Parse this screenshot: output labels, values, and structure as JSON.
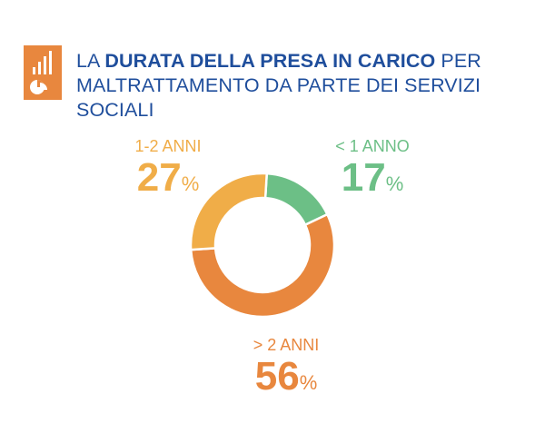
{
  "title": {
    "prefix": "LA ",
    "bold": "DURATA DELLA PRESA IN CARICO",
    "suffix": " PER",
    "line2": "MALTRATTAMENTO DA PARTE DEI SERVIZI SOCIALI"
  },
  "logo_icon": "bar-and-pie-chart-icon",
  "colors": {
    "title": "#1f4e9c",
    "logo": "#e8873e",
    "donut_orange": "#e8873e",
    "donut_yellow": "#f0ad48",
    "donut_green": "#6cbf86"
  },
  "chart_data": {
    "type": "pie",
    "variant": "donut",
    "categories": [
      "< 1 ANNO",
      "> 2 ANNI",
      "1-2 ANNI"
    ],
    "values": [
      17,
      56,
      27
    ],
    "unit": "%",
    "colors": [
      "#6cbf86",
      "#e8873e",
      "#f0ad48"
    ]
  },
  "labels": [
    {
      "category": "1-2 ANNI",
      "value": "27",
      "unit": "%",
      "color": "#f0ad48"
    },
    {
      "category": "< 1 ANNO",
      "value": "17",
      "unit": "%",
      "color": "#6cbf86"
    },
    {
      "category": "> 2 ANNI",
      "value": "56",
      "unit": "%",
      "color": "#e8873e"
    }
  ]
}
